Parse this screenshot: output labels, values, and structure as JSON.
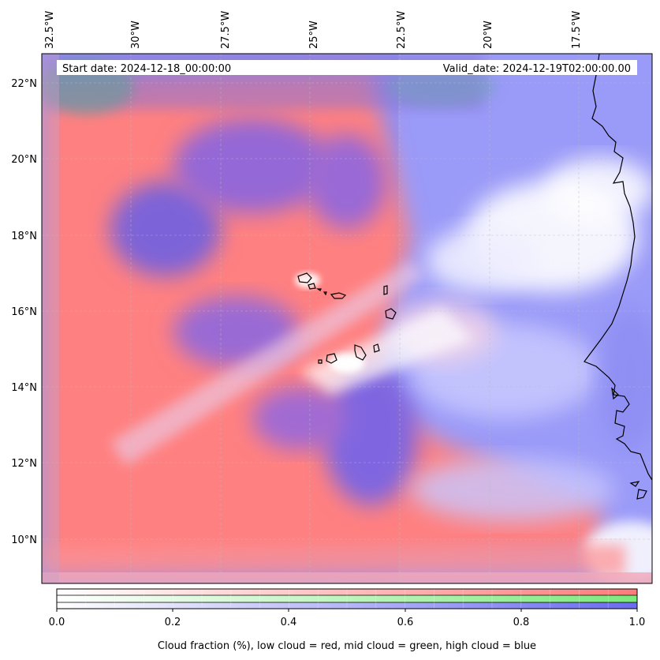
{
  "map": {
    "start_date": "Start date: 2024-12-18_00:00:00",
    "valid_date": "Valid_date: 2024-12-19T02:00:00.00",
    "lon_labels": [
      "32.5°W",
      "30°W",
      "27.5°W",
      "25°W",
      "22.5°W",
      "20°W",
      "17.5°W"
    ],
    "lat_labels": [
      "22°N",
      "20°N",
      "18°N",
      "16°N",
      "14°N",
      "12°N",
      "10°N"
    ],
    "layer_colors": {
      "low_cloud": "#ff7b7b",
      "mid_cloud": "#7bea7b",
      "high_cloud": "#6b6bf0",
      "clear_sky": "#ffffff"
    },
    "coastline_color": "#000000",
    "gridlines": "dashed, light grey"
  },
  "colorbar": {
    "ticks": [
      "0.0",
      "0.2",
      "0.4",
      "0.6",
      "0.8",
      "1.0"
    ],
    "label": "Cloud fraction (%), low cloud = red, mid cloud = green, high cloud = blue"
  }
}
